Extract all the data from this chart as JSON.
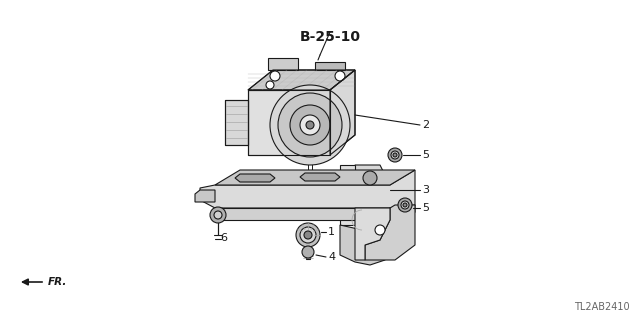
{
  "bg_color": "#ffffff",
  "part_label": "B-25-10",
  "diagram_id": "TL2AB2410",
  "fr_label": "FR.",
  "line_color": "#1a1a1a",
  "fill_light": "#e8e8e8",
  "fill_mid": "#d0d0d0",
  "fill_dark": "#b0b0b0",
  "label_fontsize": 8,
  "id_fontsize": 7,
  "part_ref_fontsize": 10,
  "lw": 0.8,
  "fig_w": 6.4,
  "fig_h": 3.2,
  "dpi": 100
}
